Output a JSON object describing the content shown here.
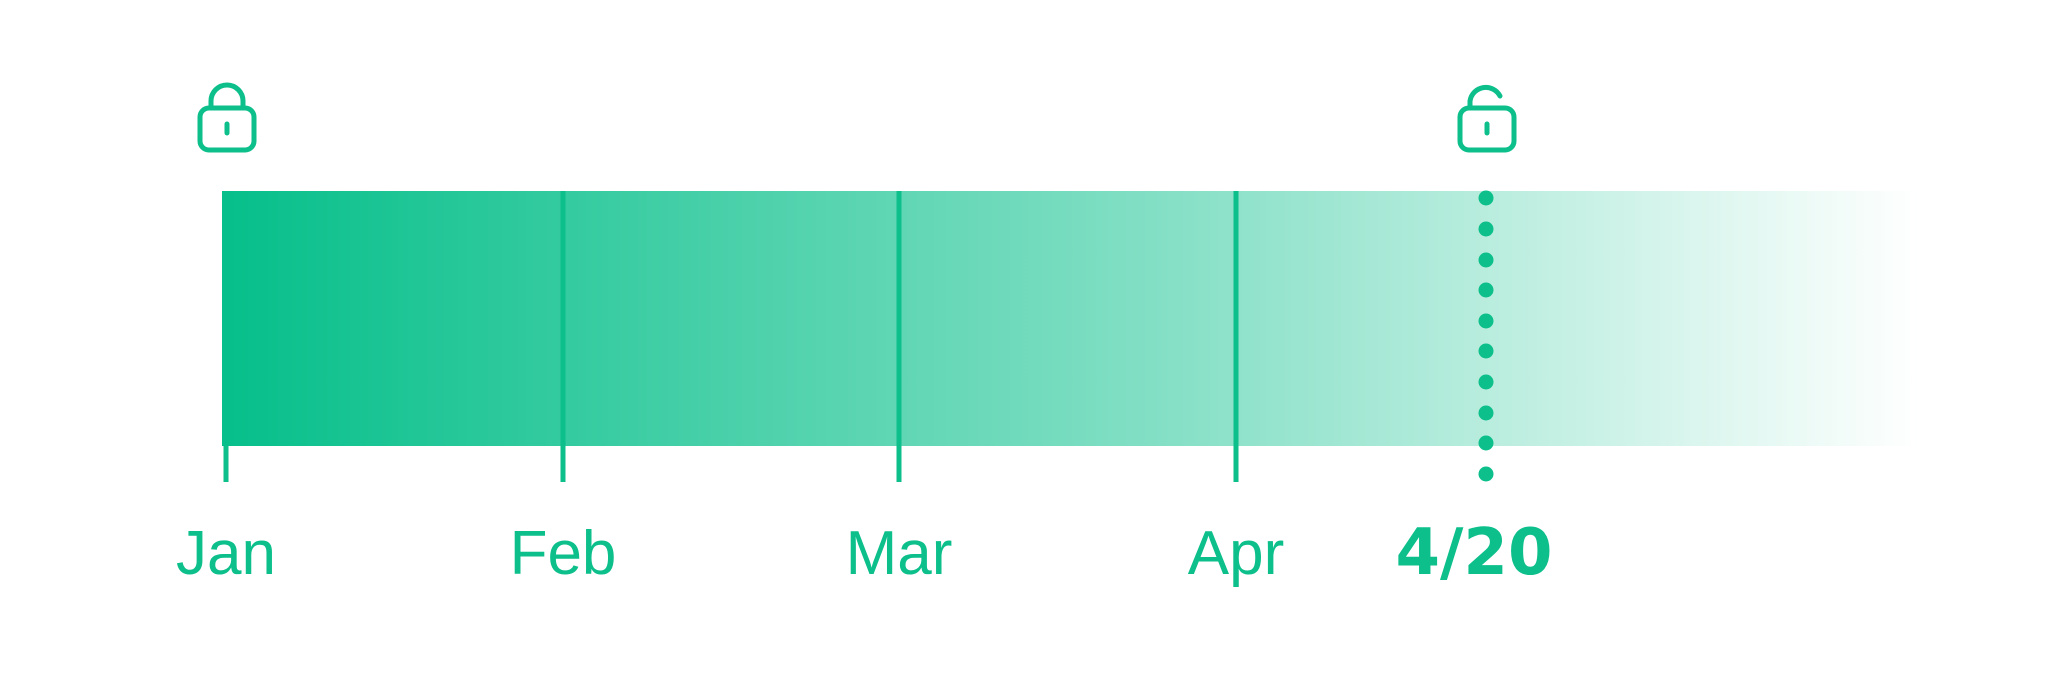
{
  "colors": {
    "accent": "#0cbf8b",
    "gradient_start": "#06bf8a",
    "gradient_end": "#ffffff",
    "background": "#ffffff"
  },
  "timeline": {
    "markers": [
      {
        "label": "Jan"
      },
      {
        "label": "Feb"
      },
      {
        "label": "Mar"
      },
      {
        "label": "Apr"
      }
    ],
    "today": {
      "label": "4/20"
    },
    "start_icon": "lock-closed-icon",
    "today_icon": "lock-open-icon"
  }
}
